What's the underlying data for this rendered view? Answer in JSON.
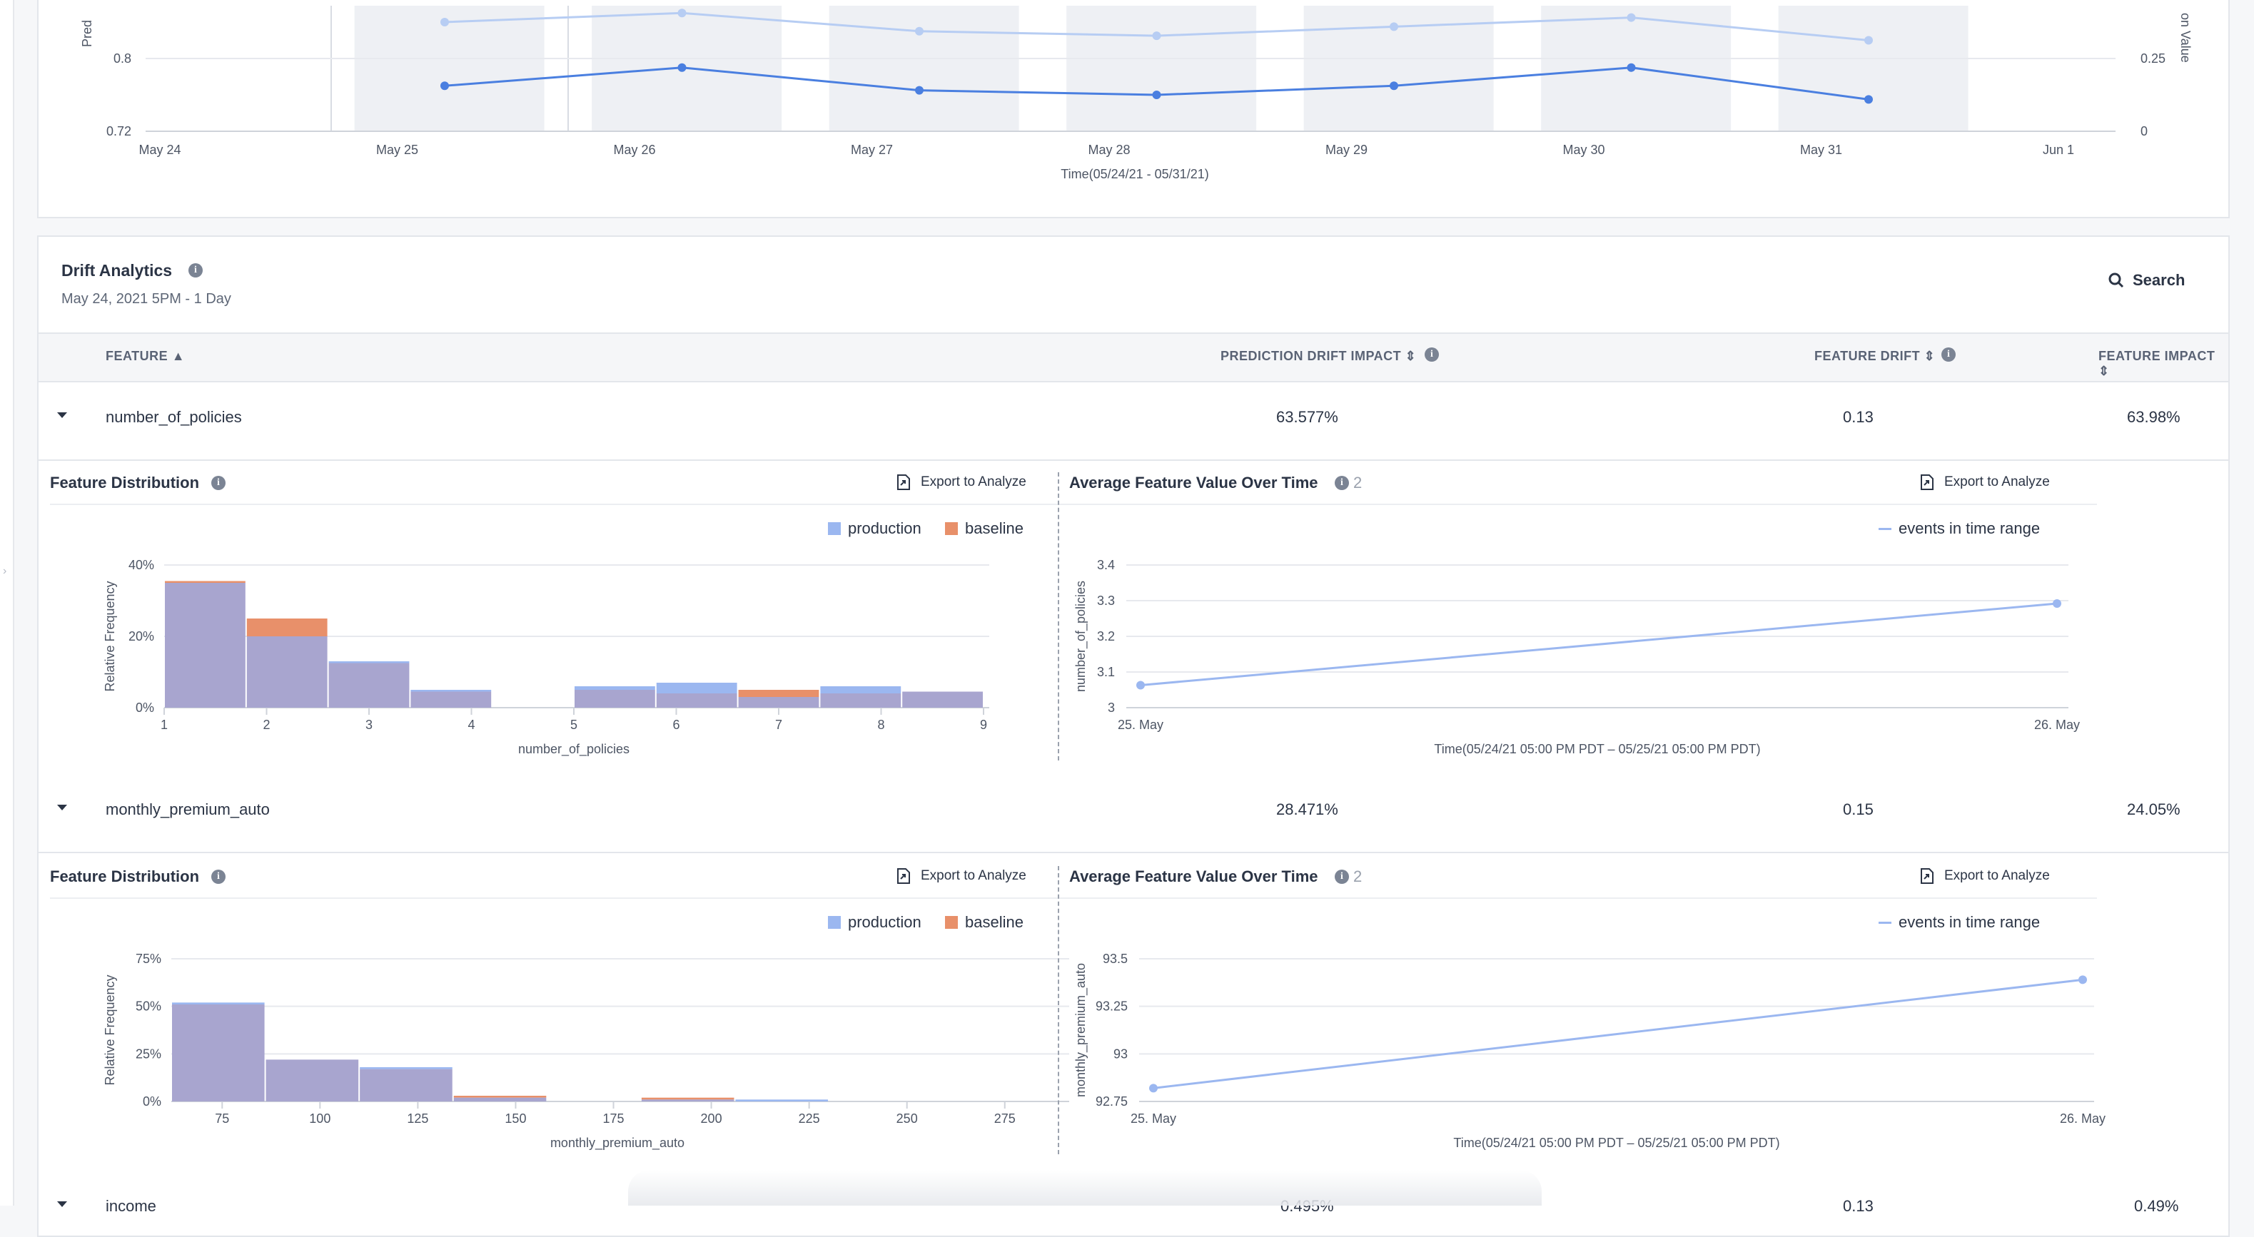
{
  "top_chart": {
    "x_tick_labels": [
      "May 24",
      "May 25",
      "May 26",
      "May 27",
      "May 28",
      "May 29",
      "May 30",
      "May 31",
      "Jun 1"
    ],
    "y_left_ticks": [
      "0.8",
      "0.72"
    ],
    "y_right_ticks": [
      "0.25",
      "0"
    ],
    "y_left_label_partial": "Pred",
    "y_right_label_partial": "on Value",
    "xlabel": "Time(05/24/21 - 05/31/21)",
    "series_light": [
      0.84,
      0.85,
      0.83,
      0.825,
      0.835,
      0.845,
      0.82
    ],
    "series_dark": [
      0.77,
      0.79,
      0.765,
      0.76,
      0.77,
      0.79,
      0.755
    ]
  },
  "drift": {
    "title": "Drift Analytics",
    "subtitle": "May 24, 2021 5PM - 1 Day",
    "search_label": "Search",
    "columns": {
      "feature": "FEATURE",
      "prediction_drift_impact": "PREDICTION DRIFT IMPACT",
      "feature_drift": "FEATURE DRIFT",
      "feature_impact": "FEATURE IMPACT"
    },
    "rows": [
      {
        "feature": "number_of_policies",
        "pdi": "63.577%",
        "fd": "0.13",
        "fi": "63.98%"
      },
      {
        "feature": "monthly_premium_auto",
        "pdi": "28.471%",
        "fd": "0.15",
        "fi": "24.05%"
      },
      {
        "feature": "income",
        "pdi": "0.495%",
        "fd": "0.13",
        "fi": "0.49%"
      }
    ],
    "panels": {
      "dist_title": "Feature Distribution",
      "avg_title": "Average Feature Value Over Time",
      "avg_badge": "2",
      "export_label": "Export to Analyze",
      "legend_production": "production",
      "legend_baseline": "baseline",
      "legend_events": "events in time range",
      "rel_freq_label": "Relative Frequency"
    }
  },
  "chart_data": [
    {
      "type": "bar",
      "title": "",
      "xlabel": "number_of_policies",
      "ylabel": "Relative Frequency",
      "x_ticks": [
        "1",
        "2",
        "3",
        "4",
        "5",
        "6",
        "7",
        "8",
        "9"
      ],
      "y_ticks": [
        "40%",
        "20%",
        "0%"
      ],
      "ylim": [
        0,
        40
      ],
      "series": [
        {
          "name": "production",
          "values": [
            35,
            20,
            13,
            5,
            0,
            6,
            7,
            3,
            6,
            4.5
          ]
        },
        {
          "name": "baseline",
          "values": [
            35.5,
            25,
            12.5,
            4.5,
            0,
            5,
            4,
            5,
            4,
            4.5
          ]
        }
      ],
      "bins": [
        [
          1,
          1.8
        ],
        [
          1.8,
          2.6
        ],
        [
          2.6,
          3.4
        ],
        [
          3.4,
          4.2
        ],
        [
          4.2,
          5
        ],
        [
          5,
          5.8
        ],
        [
          5.8,
          6.6
        ],
        [
          6.6,
          7.4
        ],
        [
          7.4,
          8.2
        ],
        [
          8.2,
          9
        ]
      ]
    },
    {
      "type": "line",
      "title": "",
      "xlabel": "Time(05/24/21 05:00 PM PDT – 05/25/21 05:00 PM PDT)",
      "ylabel": "number_of_policies",
      "x": [
        "25. May",
        "26. May"
      ],
      "y_ticks": [
        "3.4",
        "3.3",
        "3.2",
        "3.1",
        "3"
      ],
      "ylim": [
        3,
        3.4
      ],
      "series": [
        {
          "name": "events in time range",
          "values": [
            3.063,
            3.292
          ]
        }
      ]
    },
    {
      "type": "bar",
      "title": "",
      "xlabel": "monthly_premium_auto",
      "ylabel": "Relative Frequency",
      "x_ticks": [
        "75",
        "100",
        "125",
        "150",
        "175",
        "200",
        "225",
        "250",
        "275"
      ],
      "y_ticks": [
        "75%",
        "50%",
        "25%",
        "0%"
      ],
      "ylim": [
        0,
        75
      ],
      "series": [
        {
          "name": "production",
          "values": [
            52,
            22,
            18,
            2,
            0,
            1,
            1
          ]
        },
        {
          "name": "baseline",
          "values": [
            51,
            22,
            17,
            3,
            0,
            2,
            0
          ]
        }
      ],
      "bins": [
        [
          62,
          86
        ],
        [
          86,
          110
        ],
        [
          110,
          134
        ],
        [
          134,
          158
        ],
        [
          158,
          182
        ],
        [
          182,
          206
        ],
        [
          206,
          230
        ]
      ]
    },
    {
      "type": "line",
      "title": "",
      "xlabel": "Time(05/24/21 05:00 PM PDT – 05/25/21 05:00 PM PDT)",
      "ylabel": "monthly_premium_auto",
      "x": [
        "25. May",
        "26. May"
      ],
      "y_ticks": [
        "93.5",
        "93.25",
        "93",
        "92.75"
      ],
      "ylim": [
        92.75,
        93.5
      ],
      "series": [
        {
          "name": "events in time range",
          "values": [
            92.82,
            93.39
          ]
        }
      ]
    }
  ],
  "colors": {
    "production": "#9bb7f0",
    "baseline": "#e8906a",
    "overlap": "#a8a5cf",
    "line_dark": "#4a7fe0",
    "line_light": "#b7cdf3"
  }
}
